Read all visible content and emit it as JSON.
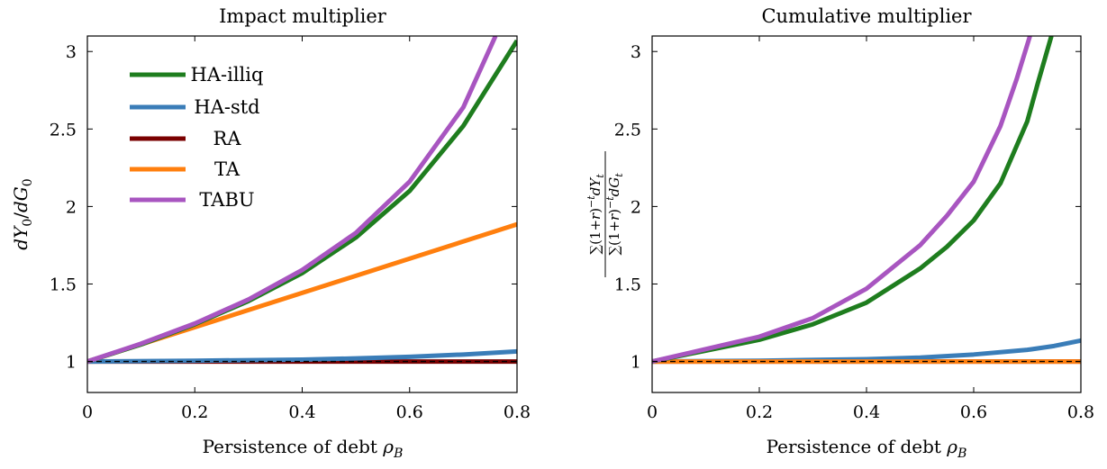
{
  "chart_data": [
    {
      "type": "line",
      "title": "Impact multiplier",
      "xlabel": "Persistence of debt ρ_B",
      "ylabel": "dY_0/dG_0",
      "xlim": [
        0,
        0.8
      ],
      "ylim": [
        0.8,
        3.1
      ],
      "x_ticks": [
        "0",
        "0.2",
        "0.4",
        "0.6",
        "0.8"
      ],
      "y_ticks": [
        "1",
        "1.5",
        "2",
        "2.5",
        "3"
      ],
      "legend_position": "top-left",
      "reference_line": {
        "y": 1,
        "style": "dashed"
      },
      "series": [
        {
          "name": "HA-illiq",
          "color": "#1e7d1e",
          "points": [
            [
              0,
              1.0
            ],
            [
              0.1,
              1.11
            ],
            [
              0.2,
              1.24
            ],
            [
              0.3,
              1.39
            ],
            [
              0.4,
              1.57
            ],
            [
              0.5,
              1.8
            ],
            [
              0.6,
              2.1
            ],
            [
              0.7,
              2.52
            ],
            [
              0.8,
              3.07
            ]
          ]
        },
        {
          "name": "HA-std",
          "color": "#3a7db8",
          "points": [
            [
              0,
              1.0
            ],
            [
              0.2,
              1.005
            ],
            [
              0.4,
              1.012
            ],
            [
              0.5,
              1.02
            ],
            [
              0.6,
              1.03
            ],
            [
              0.7,
              1.045
            ],
            [
              0.8,
              1.065
            ]
          ]
        },
        {
          "name": "RA",
          "color": "#7a0000",
          "points": [
            [
              0,
              1.0
            ],
            [
              0.8,
              1.0
            ]
          ]
        },
        {
          "name": "TA",
          "color": "#ff7f0e",
          "points": [
            [
              0,
              1.0
            ],
            [
              0.8,
              1.885
            ]
          ]
        },
        {
          "name": "TABU",
          "color": "#a855c0",
          "points": [
            [
              0,
              1.0
            ],
            [
              0.1,
              1.115
            ],
            [
              0.2,
              1.245
            ],
            [
              0.3,
              1.4
            ],
            [
              0.4,
              1.59
            ],
            [
              0.5,
              1.83
            ],
            [
              0.6,
              2.16
            ],
            [
              0.7,
              2.64
            ],
            [
              0.76,
              3.1
            ]
          ]
        }
      ]
    },
    {
      "type": "line",
      "title": "Cumulative multiplier",
      "xlabel": "Persistence of debt ρ_B",
      "ylabel": "Σ(1+r)^−t dY_t / Σ(1+r)^−t dG_t",
      "xlim": [
        0,
        0.8
      ],
      "ylim": [
        0.8,
        3.1
      ],
      "x_ticks": [
        "0",
        "0.2",
        "0.4",
        "0.6",
        "0.8"
      ],
      "y_ticks": [
        "1",
        "1.5",
        "2",
        "2.5",
        "3"
      ],
      "reference_line": {
        "y": 1,
        "style": "dashed"
      },
      "series": [
        {
          "name": "HA-illiq",
          "color": "#1e7d1e",
          "points": [
            [
              0,
              1.0
            ],
            [
              0.1,
              1.07
            ],
            [
              0.2,
              1.14
            ],
            [
              0.3,
              1.24
            ],
            [
              0.4,
              1.38
            ],
            [
              0.5,
              1.6
            ],
            [
              0.55,
              1.74
            ],
            [
              0.6,
              1.91
            ],
            [
              0.65,
              2.15
            ],
            [
              0.7,
              2.55
            ],
            [
              0.72,
              2.8
            ],
            [
              0.745,
              3.1
            ]
          ]
        },
        {
          "name": "HA-std",
          "color": "#3a7db8",
          "points": [
            [
              0,
              1.0
            ],
            [
              0.2,
              1.005
            ],
            [
              0.4,
              1.015
            ],
            [
              0.5,
              1.025
            ],
            [
              0.6,
              1.045
            ],
            [
              0.7,
              1.075
            ],
            [
              0.75,
              1.1
            ],
            [
              0.8,
              1.135
            ]
          ]
        },
        {
          "name": "RA",
          "color": "#7a0000",
          "points": [
            [
              0,
              1.0
            ],
            [
              0.8,
              1.0
            ]
          ]
        },
        {
          "name": "TA",
          "color": "#ff7f0e",
          "points": [
            [
              0,
              1.0
            ],
            [
              0.8,
              1.0
            ]
          ]
        },
        {
          "name": "TABU",
          "color": "#a855c0",
          "points": [
            [
              0,
              1.0
            ],
            [
              0.1,
              1.08
            ],
            [
              0.2,
              1.16
            ],
            [
              0.3,
              1.28
            ],
            [
              0.4,
              1.47
            ],
            [
              0.5,
              1.75
            ],
            [
              0.55,
              1.94
            ],
            [
              0.6,
              2.16
            ],
            [
              0.65,
              2.52
            ],
            [
              0.68,
              2.82
            ],
            [
              0.705,
              3.1
            ]
          ]
        }
      ]
    }
  ]
}
